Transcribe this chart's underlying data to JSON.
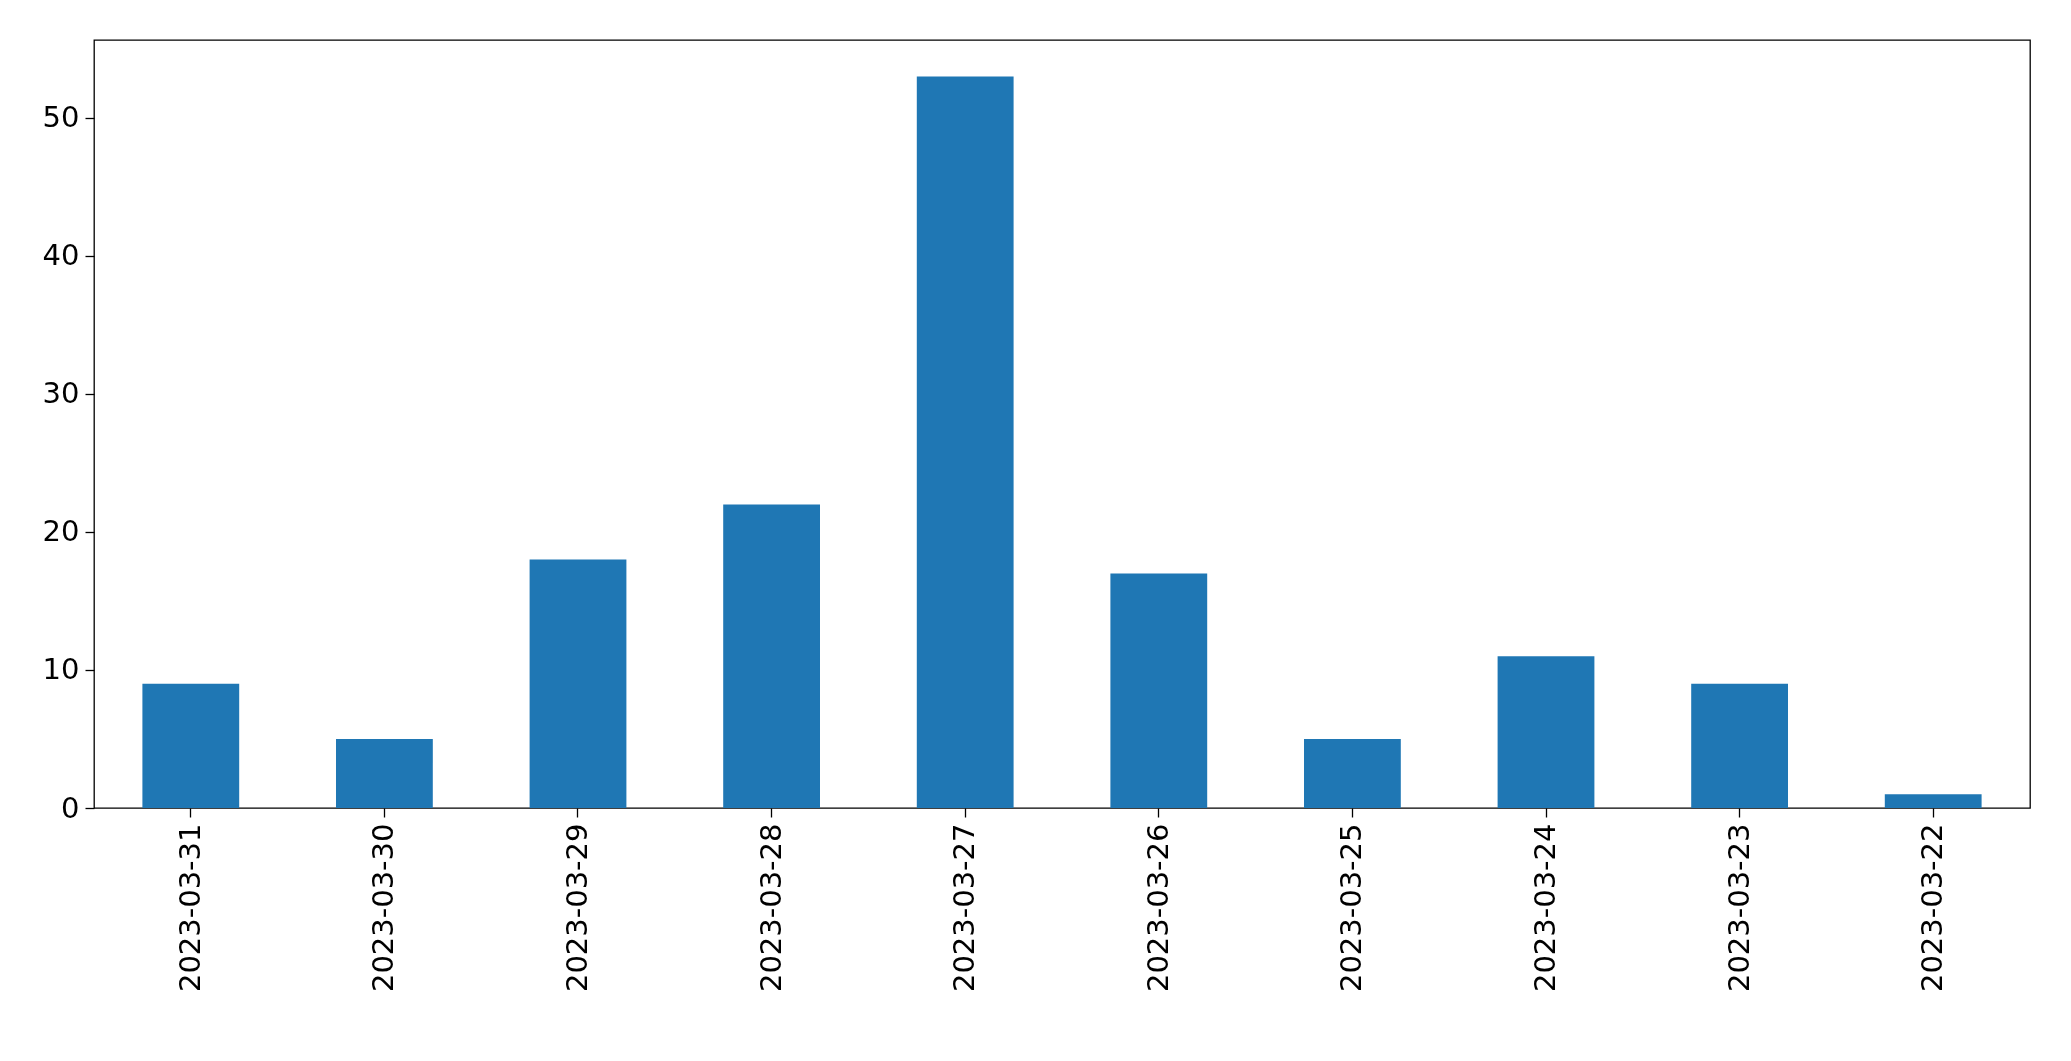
{
  "chart_data": {
    "type": "bar",
    "categories": [
      "2023-03-31",
      "2023-03-30",
      "2023-03-29",
      "2023-03-28",
      "2023-03-27",
      "2023-03-26",
      "2023-03-25",
      "2023-03-24",
      "2023-03-23",
      "2023-03-22"
    ],
    "values": [
      9,
      5,
      18,
      22,
      53,
      17,
      5,
      11,
      9,
      1
    ],
    "color": "#1f77b4",
    "ylim": [
      0,
      55.65
    ],
    "yticks": [
      0,
      10,
      20,
      30,
      40,
      50
    ],
    "grid": false
  }
}
